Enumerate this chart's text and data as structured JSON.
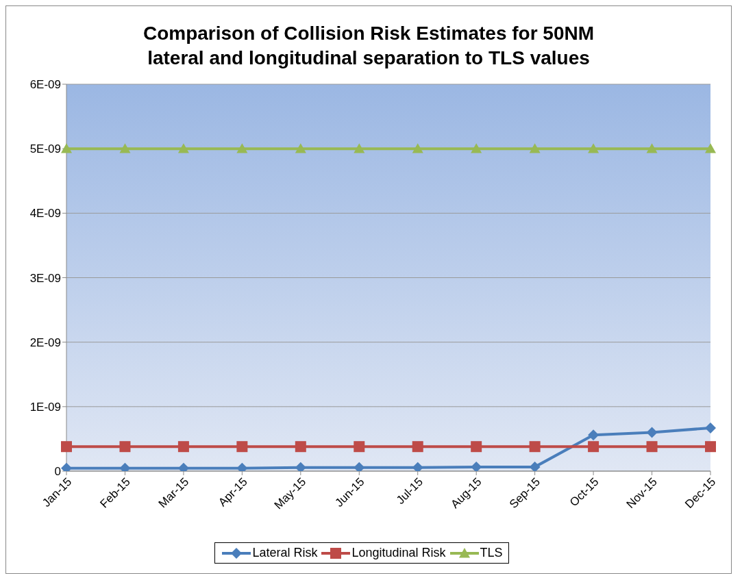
{
  "chart_data": {
    "type": "line",
    "title": "Comparison of Collision Risk Estimates for 50NM lateral and longitudinal separation to TLS values",
    "categories": [
      "Jan-15",
      "Feb-15",
      "Mar-15",
      "Apr-15",
      "May-15",
      "Jun-15",
      "Jul-15",
      "Aug-15",
      "Sep-15",
      "Oct-15",
      "Nov-15",
      "Dec-15"
    ],
    "series": [
      {
        "name": "Lateral Risk",
        "color": "#4a7ebb",
        "marker": "diamond",
        "values": [
          4.5e-11,
          4.5e-11,
          4.5e-11,
          4.5e-11,
          5.5e-11,
          5.5e-11,
          5.5e-11,
          6.5e-11,
          6.5e-11,
          5.6e-10,
          6e-10,
          6.7e-10
        ]
      },
      {
        "name": "Longitudinal Risk",
        "color": "#be4b48",
        "marker": "square",
        "values": [
          3.8e-10,
          3.8e-10,
          3.8e-10,
          3.8e-10,
          3.8e-10,
          3.8e-10,
          3.8e-10,
          3.8e-10,
          3.8e-10,
          3.8e-10,
          3.8e-10,
          3.8e-10
        ]
      },
      {
        "name": "TLS",
        "color": "#98b954",
        "marker": "triangle",
        "values": [
          5e-09,
          5e-09,
          5e-09,
          5e-09,
          5e-09,
          5e-09,
          5e-09,
          5e-09,
          5e-09,
          5e-09,
          5e-09,
          5e-09
        ]
      }
    ],
    "ylim": [
      0,
      6e-09
    ],
    "yticks": [
      0,
      {
        "value": 1e-09,
        "label": "1E-09"
      },
      {
        "value": 2e-09,
        "label": "2E-09"
      },
      {
        "value": 3e-09,
        "label": "3E-09"
      },
      {
        "value": 4e-09,
        "label": "4E-09"
      },
      {
        "value": 5e-09,
        "label": "5E-09"
      },
      {
        "value": 6e-09,
        "label": "6E-09"
      }
    ],
    "grid": "y",
    "legend": "bottom",
    "line_style": "solid"
  }
}
